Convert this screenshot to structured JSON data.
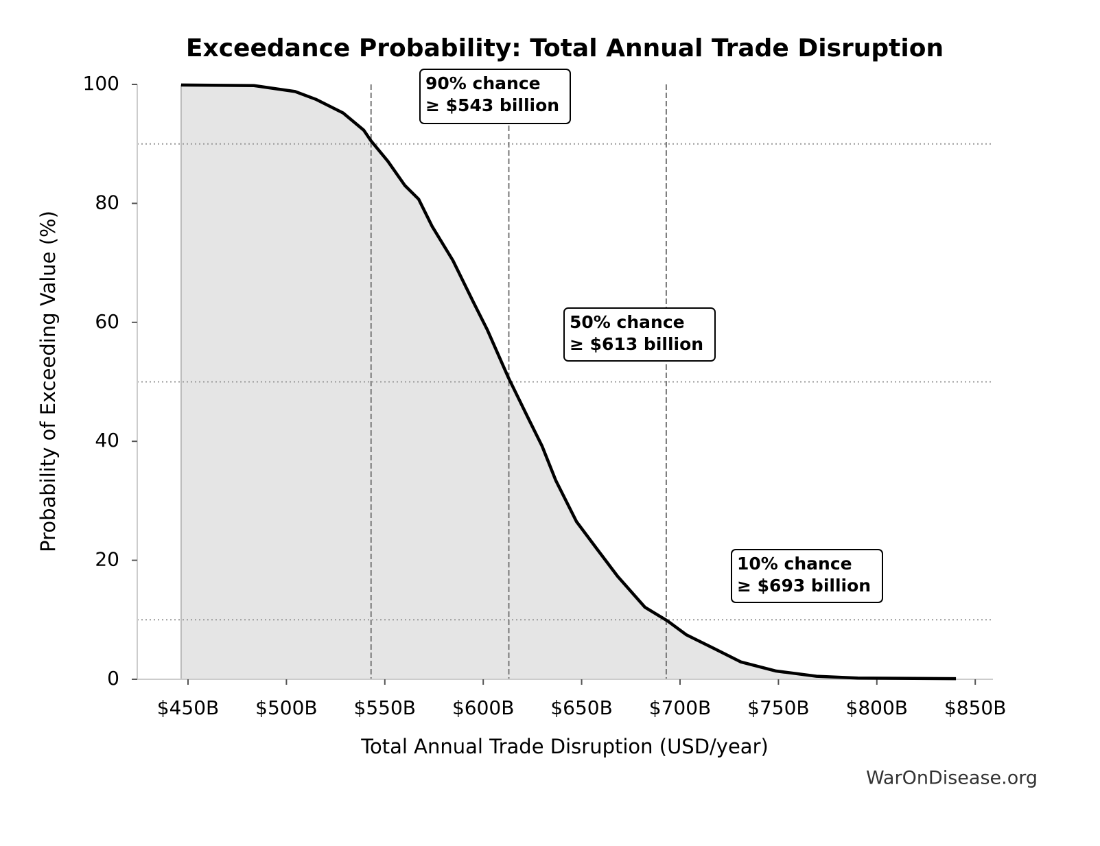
{
  "chart_data": {
    "type": "line",
    "title": "Exceedance Probability: Total Annual Trade Disruption",
    "x_label": "Total Annual Trade Disruption (USD/year)",
    "y_label": "Probability of Exceeding Value (%)",
    "source": "WarOnDisease.org",
    "color": "#000000",
    "fill_color": "#e5e5e5",
    "x": [
      446.5,
      483.5,
      504.4,
      514.9,
      528.8,
      539.3,
      543,
      551.5,
      560.2,
      567.2,
      574.1,
      584.6,
      595,
      602,
      612.8,
      623,
      629.9,
      636.9,
      647.4,
      657.8,
      668.3,
      682.2,
      693.7,
      703.1,
      717.1,
      731,
      748.5,
      769.4,
      790.3,
      840.2
    ],
    "values": [
      99.9,
      99.8,
      98.8,
      97.5,
      95.2,
      92.3,
      90.5,
      87.1,
      83,
      80.7,
      76.1,
      70.4,
      63.4,
      58.8,
      50.7,
      43.8,
      39.2,
      33.4,
      26.5,
      21.9,
      17.3,
      12.1,
      9.8,
      7.5,
      5.2,
      2.9,
      1.4,
      0.5,
      0.2,
      0.1
    ],
    "xlim": [
      424.2,
      859
    ],
    "ylim": [
      0,
      100
    ],
    "xticks": [
      {
        "value": 450,
        "label": "$450B"
      },
      {
        "value": 500,
        "label": "$500B"
      },
      {
        "value": 550,
        "label": "$550B"
      },
      {
        "value": 600,
        "label": "$600B"
      },
      {
        "value": 650,
        "label": "$650B"
      },
      {
        "value": 700,
        "label": "$700B"
      },
      {
        "value": 750,
        "label": "$750B"
      },
      {
        "value": 800,
        "label": "$800B"
      },
      {
        "value": 850,
        "label": "$850B"
      }
    ],
    "yticks": [
      0,
      20,
      40,
      60,
      80,
      100
    ],
    "vlines": [
      543,
      613,
      693
    ],
    "hlines": [
      90,
      50,
      10
    ],
    "annotations": [
      {
        "lines": [
          "90% chance",
          "≥ $543 billion"
        ]
      },
      {
        "lines": [
          "50% chance",
          "≥ $613 billion"
        ]
      },
      {
        "lines": [
          "10% chance",
          "≥ $693 billion"
        ]
      }
    ]
  }
}
